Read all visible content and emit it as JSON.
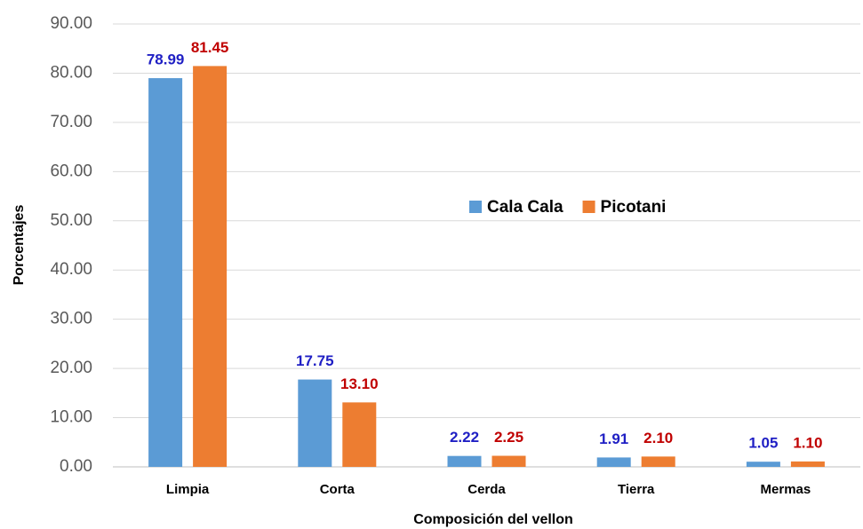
{
  "chart_data": {
    "type": "bar",
    "x_label": "Composición del vellon",
    "y_label": "Porcentajes",
    "categories": [
      "Limpia",
      "Corta",
      "Cerda",
      "Tierra",
      "Mermas"
    ],
    "series": [
      {
        "name": "Cala Cala",
        "color": "#5b9bd5",
        "label_color": "#1f1fc4",
        "values": [
          78.99,
          17.75,
          2.22,
          1.91,
          1.05
        ],
        "value_labels": [
          "78.99",
          "17.75",
          "2.22",
          "1.91",
          "1.05"
        ]
      },
      {
        "name": "Picotani",
        "color": "#ed7d31",
        "label_color": "#c00000",
        "values": [
          81.45,
          13.1,
          2.25,
          2.1,
          1.1
        ],
        "value_labels": [
          "81.45",
          "13.10",
          "2.25",
          "2.10",
          "1.10"
        ]
      }
    ],
    "ylim": [
      0,
      90
    ],
    "yticks": [
      {
        "value": 0,
        "label": "0.00"
      },
      {
        "value": 10,
        "label": "10.00"
      },
      {
        "value": 20,
        "label": "20.00"
      },
      {
        "value": 30,
        "label": "30.00"
      },
      {
        "value": 40,
        "label": "40.00"
      },
      {
        "value": 50,
        "label": "50.00"
      },
      {
        "value": 60,
        "label": "60.00"
      },
      {
        "value": 70,
        "label": "70.00"
      },
      {
        "value": 80,
        "label": "80.00"
      },
      {
        "value": 90,
        "label": "90.00"
      }
    ],
    "grid": true,
    "legend": "center"
  }
}
